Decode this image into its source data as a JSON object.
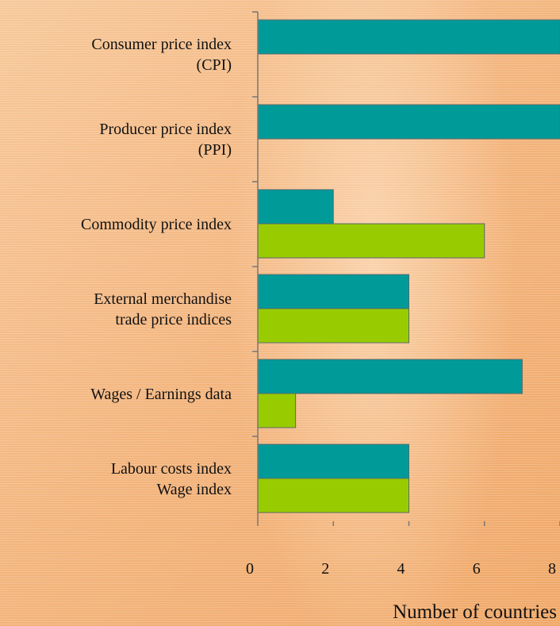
{
  "chart_data": {
    "type": "bar",
    "orientation": "horizontal",
    "categories": [
      "Consumer price index\n(CPI)",
      "Producer price index\n(PPI)",
      "Commodity price index",
      "External merchandise\ntrade price indices",
      "Wages / Earnings data",
      "Labour costs index\nWage index"
    ],
    "series": [
      {
        "color": "#009a99",
        "values": [
          8,
          8,
          2,
          4,
          7,
          4
        ]
      },
      {
        "color": "#99cc00",
        "values": [
          null,
          null,
          6,
          4,
          1,
          4
        ]
      }
    ],
    "xlim": [
      0,
      8
    ],
    "xticks": [
      0,
      2,
      4,
      6,
      8
    ],
    "xlabel": "Number of countries"
  }
}
